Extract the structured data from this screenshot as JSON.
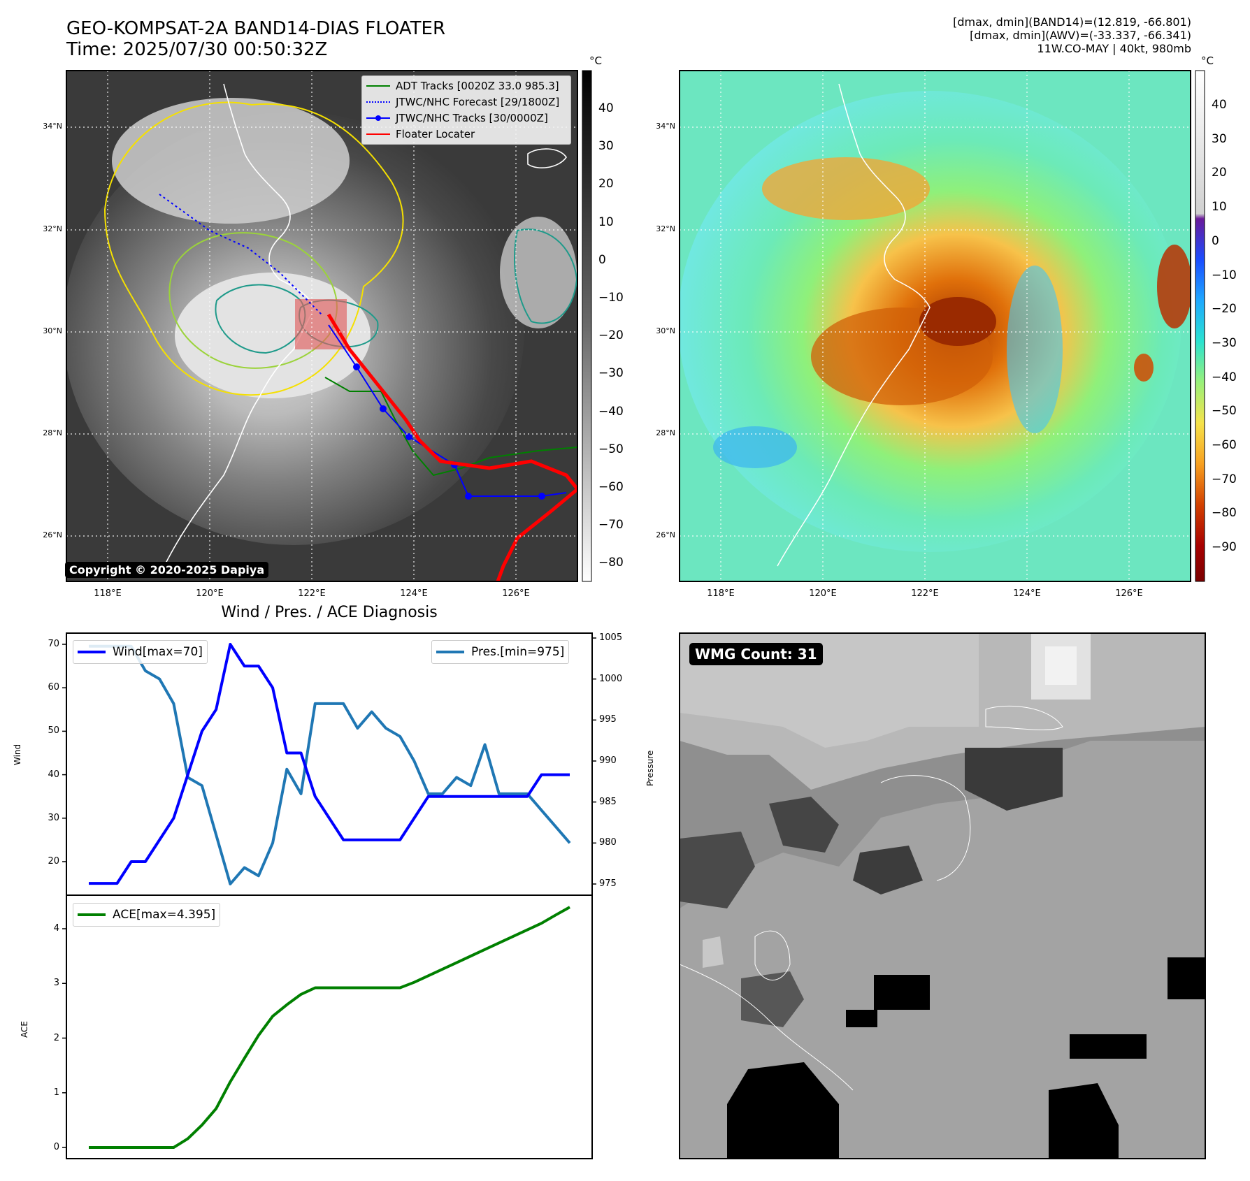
{
  "header": {
    "title_line1": "GEO-KOMPSAT-2A BAND14-DIAS FLOATER",
    "title_line2": "Time: 2025/07/30 00:50:32Z",
    "info_line1": "[dmax, dmin](BAND14)=(12.819, -66.801)",
    "info_line2": "[dmax, dmin](AWV)=(-33.337, -66.341)",
    "info_line3": "11W.CO-MAY | 40kt, 980mb"
  },
  "ir_panel": {
    "copyright": "Copyright © 2020-2025 Dapiya",
    "lon_labels": [
      "118°E",
      "120°E",
      "122°E",
      "124°E",
      "126°E"
    ],
    "lat_labels": [
      "34°N",
      "32°N",
      "30°N",
      "28°N",
      "26°N"
    ],
    "colorbar_unit": "°C",
    "colorbar_ticks": [
      "40",
      "30",
      "20",
      "10",
      "0",
      "−10",
      "−20",
      "−30",
      "−40",
      "−50",
      "−60",
      "−70",
      "−80"
    ],
    "legend": [
      {
        "label": "ADT Tracks [0020Z 33.0 985.3]",
        "color": "#008000",
        "style": "solid"
      },
      {
        "label": "JTWC/NHC Forecast [29/1800Z]",
        "color": "#0000ff",
        "style": "dotted"
      },
      {
        "label": "JTWC/NHC Tracks [30/0000Z]",
        "color": "#0000ff",
        "style": "marker"
      },
      {
        "label": "Floater Locater",
        "color": "#ff0000",
        "style": "solid"
      }
    ]
  },
  "wv_panel": {
    "lon_labels": [
      "118°E",
      "120°E",
      "122°E",
      "124°E",
      "126°E"
    ],
    "lat_labels": [
      "34°N",
      "32°N",
      "30°N",
      "28°N",
      "26°N"
    ],
    "colorbar_unit": "°C",
    "colorbar_ticks": [
      "40",
      "30",
      "20",
      "10",
      "0",
      "−10",
      "−20",
      "−30",
      "−40",
      "−50",
      "−60",
      "−70",
      "−80",
      "−90"
    ]
  },
  "diagnosis": {
    "title": "Wind / Pres. / ACE Diagnosis",
    "wind_ylabel": "Wind",
    "pres_ylabel": "Pressure",
    "ace_ylabel": "ACE",
    "wind_ticks": [
      "70",
      "60",
      "50",
      "40",
      "30",
      "20"
    ],
    "pres_ticks": [
      "1005",
      "1000",
      "995",
      "990",
      "985",
      "980",
      "975"
    ],
    "ace_ticks": [
      "4",
      "3",
      "2",
      "1",
      "0"
    ]
  },
  "wmg_panel": {
    "badge": "WMG Count: 31"
  },
  "colors": {
    "wind": "#0000ff",
    "pressure": "#1f77b4",
    "ace": "#008000"
  },
  "chart_data": [
    {
      "type": "line",
      "title": "",
      "xlabel": "",
      "ylabel": "Wind",
      "ylim": [
        13,
        72
      ],
      "series": [
        {
          "name": "Wind[max=70]",
          "axis": "left",
          "x": [
            0,
            1,
            2,
            3,
            4,
            5,
            6,
            7,
            8,
            9,
            10,
            11,
            12,
            13,
            14,
            15,
            16,
            17,
            18,
            19,
            20,
            21,
            22,
            23,
            24,
            25,
            26,
            27,
            28,
            29,
            30,
            31,
            32,
            33,
            34
          ],
          "values": [
            15,
            15,
            15,
            20,
            20,
            25,
            30,
            40,
            50,
            55,
            70,
            65,
            65,
            60,
            45,
            45,
            35,
            30,
            25,
            25,
            25,
            25,
            25,
            30,
            35,
            35,
            35,
            35,
            35,
            35,
            35,
            35,
            40,
            40,
            40
          ]
        }
      ]
    },
    {
      "type": "line",
      "title": "",
      "xlabel": "",
      "ylabel": "Pressure",
      "ylim": [
        974,
        1006
      ],
      "series": [
        {
          "name": "Pres.[min=975]",
          "axis": "right",
          "x": [
            0,
            1,
            2,
            3,
            4,
            5,
            6,
            7,
            8,
            9,
            10,
            11,
            12,
            13,
            14,
            15,
            16,
            17,
            18,
            19,
            20,
            21,
            22,
            23,
            24,
            25,
            26,
            27,
            28,
            29,
            30,
            31,
            32,
            33,
            34
          ],
          "values": [
            1004,
            1004,
            1004,
            1004,
            1001,
            1000,
            997,
            988,
            987,
            981,
            975,
            977,
            976,
            980,
            989,
            986,
            997,
            997,
            997,
            994,
            996,
            994,
            993,
            990,
            986,
            986,
            988,
            987,
            992,
            986,
            986,
            986,
            984,
            982,
            980
          ]
        }
      ]
    },
    {
      "type": "line",
      "title": "",
      "xlabel": "",
      "ylabel": "ACE",
      "ylim": [
        -0.1,
        4.6
      ],
      "series": [
        {
          "name": "ACE[max=4.395]",
          "x": [
            0,
            1,
            2,
            3,
            4,
            5,
            6,
            7,
            8,
            9,
            10,
            11,
            12,
            13,
            14,
            15,
            16,
            17,
            18,
            19,
            20,
            21,
            22,
            23,
            24,
            25,
            26,
            27,
            28,
            29,
            30,
            31,
            32,
            33,
            34
          ],
          "values": [
            0,
            0,
            0,
            0,
            0,
            0,
            0,
            0.16,
            0.41,
            0.71,
            1.2,
            1.63,
            2.05,
            2.4,
            2.61,
            2.8,
            2.92,
            2.92,
            2.92,
            2.92,
            2.92,
            2.92,
            2.92,
            3.02,
            3.14,
            3.26,
            3.38,
            3.5,
            3.62,
            3.74,
            3.86,
            3.98,
            4.1,
            4.25,
            4.395
          ]
        }
      ]
    }
  ]
}
